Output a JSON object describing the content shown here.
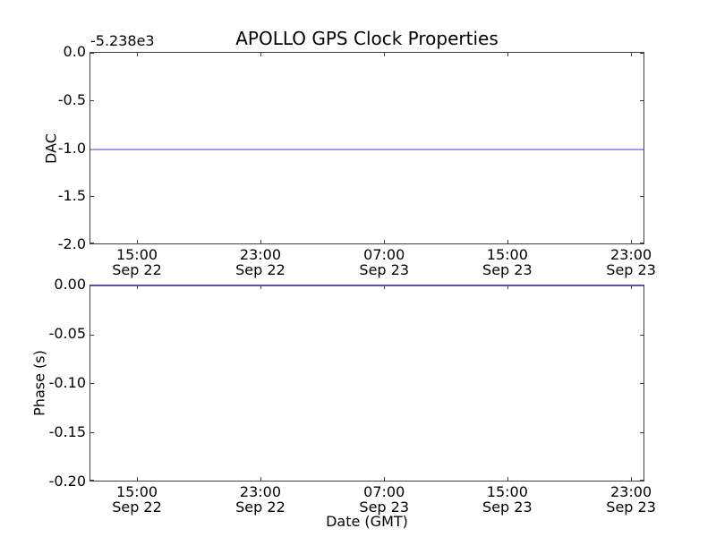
{
  "figure": {
    "background_color": "#ffffff",
    "axis_color": "#404040",
    "text_color": "#000000"
  },
  "chart_data": [
    {
      "type": "line",
      "name": "dac",
      "title": "APOLLO GPS Clock Properties",
      "ylabel": "DAC",
      "xlabel": "",
      "y_offset_label": "-5.238e3",
      "ylim": [
        -2.0,
        0.0
      ],
      "ytick_labels": [
        "0.0",
        "-0.5",
        "-1.0",
        "-1.5",
        "-2.0"
      ],
      "ytick_values": [
        0.0,
        -0.5,
        -1.0,
        -1.5,
        -2.0
      ],
      "xtick_labels": [
        [
          "15:00",
          "Sep 22"
        ],
        [
          "23:00",
          "Sep 22"
        ],
        [
          "07:00",
          "Sep 23"
        ],
        [
          "15:00",
          "Sep 23"
        ],
        [
          "23:00",
          "Sep 23"
        ]
      ],
      "xtick_positions": [
        0.0855,
        0.308,
        0.531,
        0.753,
        0.976
      ],
      "grid": false,
      "legend": null,
      "series": [
        {
          "name": "DAC",
          "shape": "constant-horizontal-line",
          "value": -1.0,
          "color": "#9191f0",
          "note": "flat line at -1.0 relative to axis offset -5.238e3"
        }
      ]
    },
    {
      "type": "line",
      "name": "phase",
      "title": "",
      "ylabel": "Phase (s)",
      "xlabel": "Date (GMT)",
      "y_offset_label": "",
      "ylim": [
        -0.2,
        0.0
      ],
      "ytick_labels": [
        "0.00",
        "-0.05",
        "-0.10",
        "-0.15",
        "-0.20"
      ],
      "ytick_values": [
        0.0,
        -0.05,
        -0.1,
        -0.15,
        -0.2
      ],
      "xtick_labels": [
        [
          "15:00",
          "Sep 22"
        ],
        [
          "23:00",
          "Sep 22"
        ],
        [
          "07:00",
          "Sep 23"
        ],
        [
          "15:00",
          "Sep 23"
        ],
        [
          "23:00",
          "Sep 23"
        ]
      ],
      "xtick_positions": [
        0.0855,
        0.308,
        0.531,
        0.753,
        0.976
      ],
      "grid": false,
      "legend": null,
      "series": [
        {
          "name": "Phase",
          "shape": "constant-horizontal-line",
          "value": 0.0,
          "color": "#3c3c8a",
          "note": "flat line at 0.00 s overlapping the top spine"
        }
      ]
    }
  ]
}
